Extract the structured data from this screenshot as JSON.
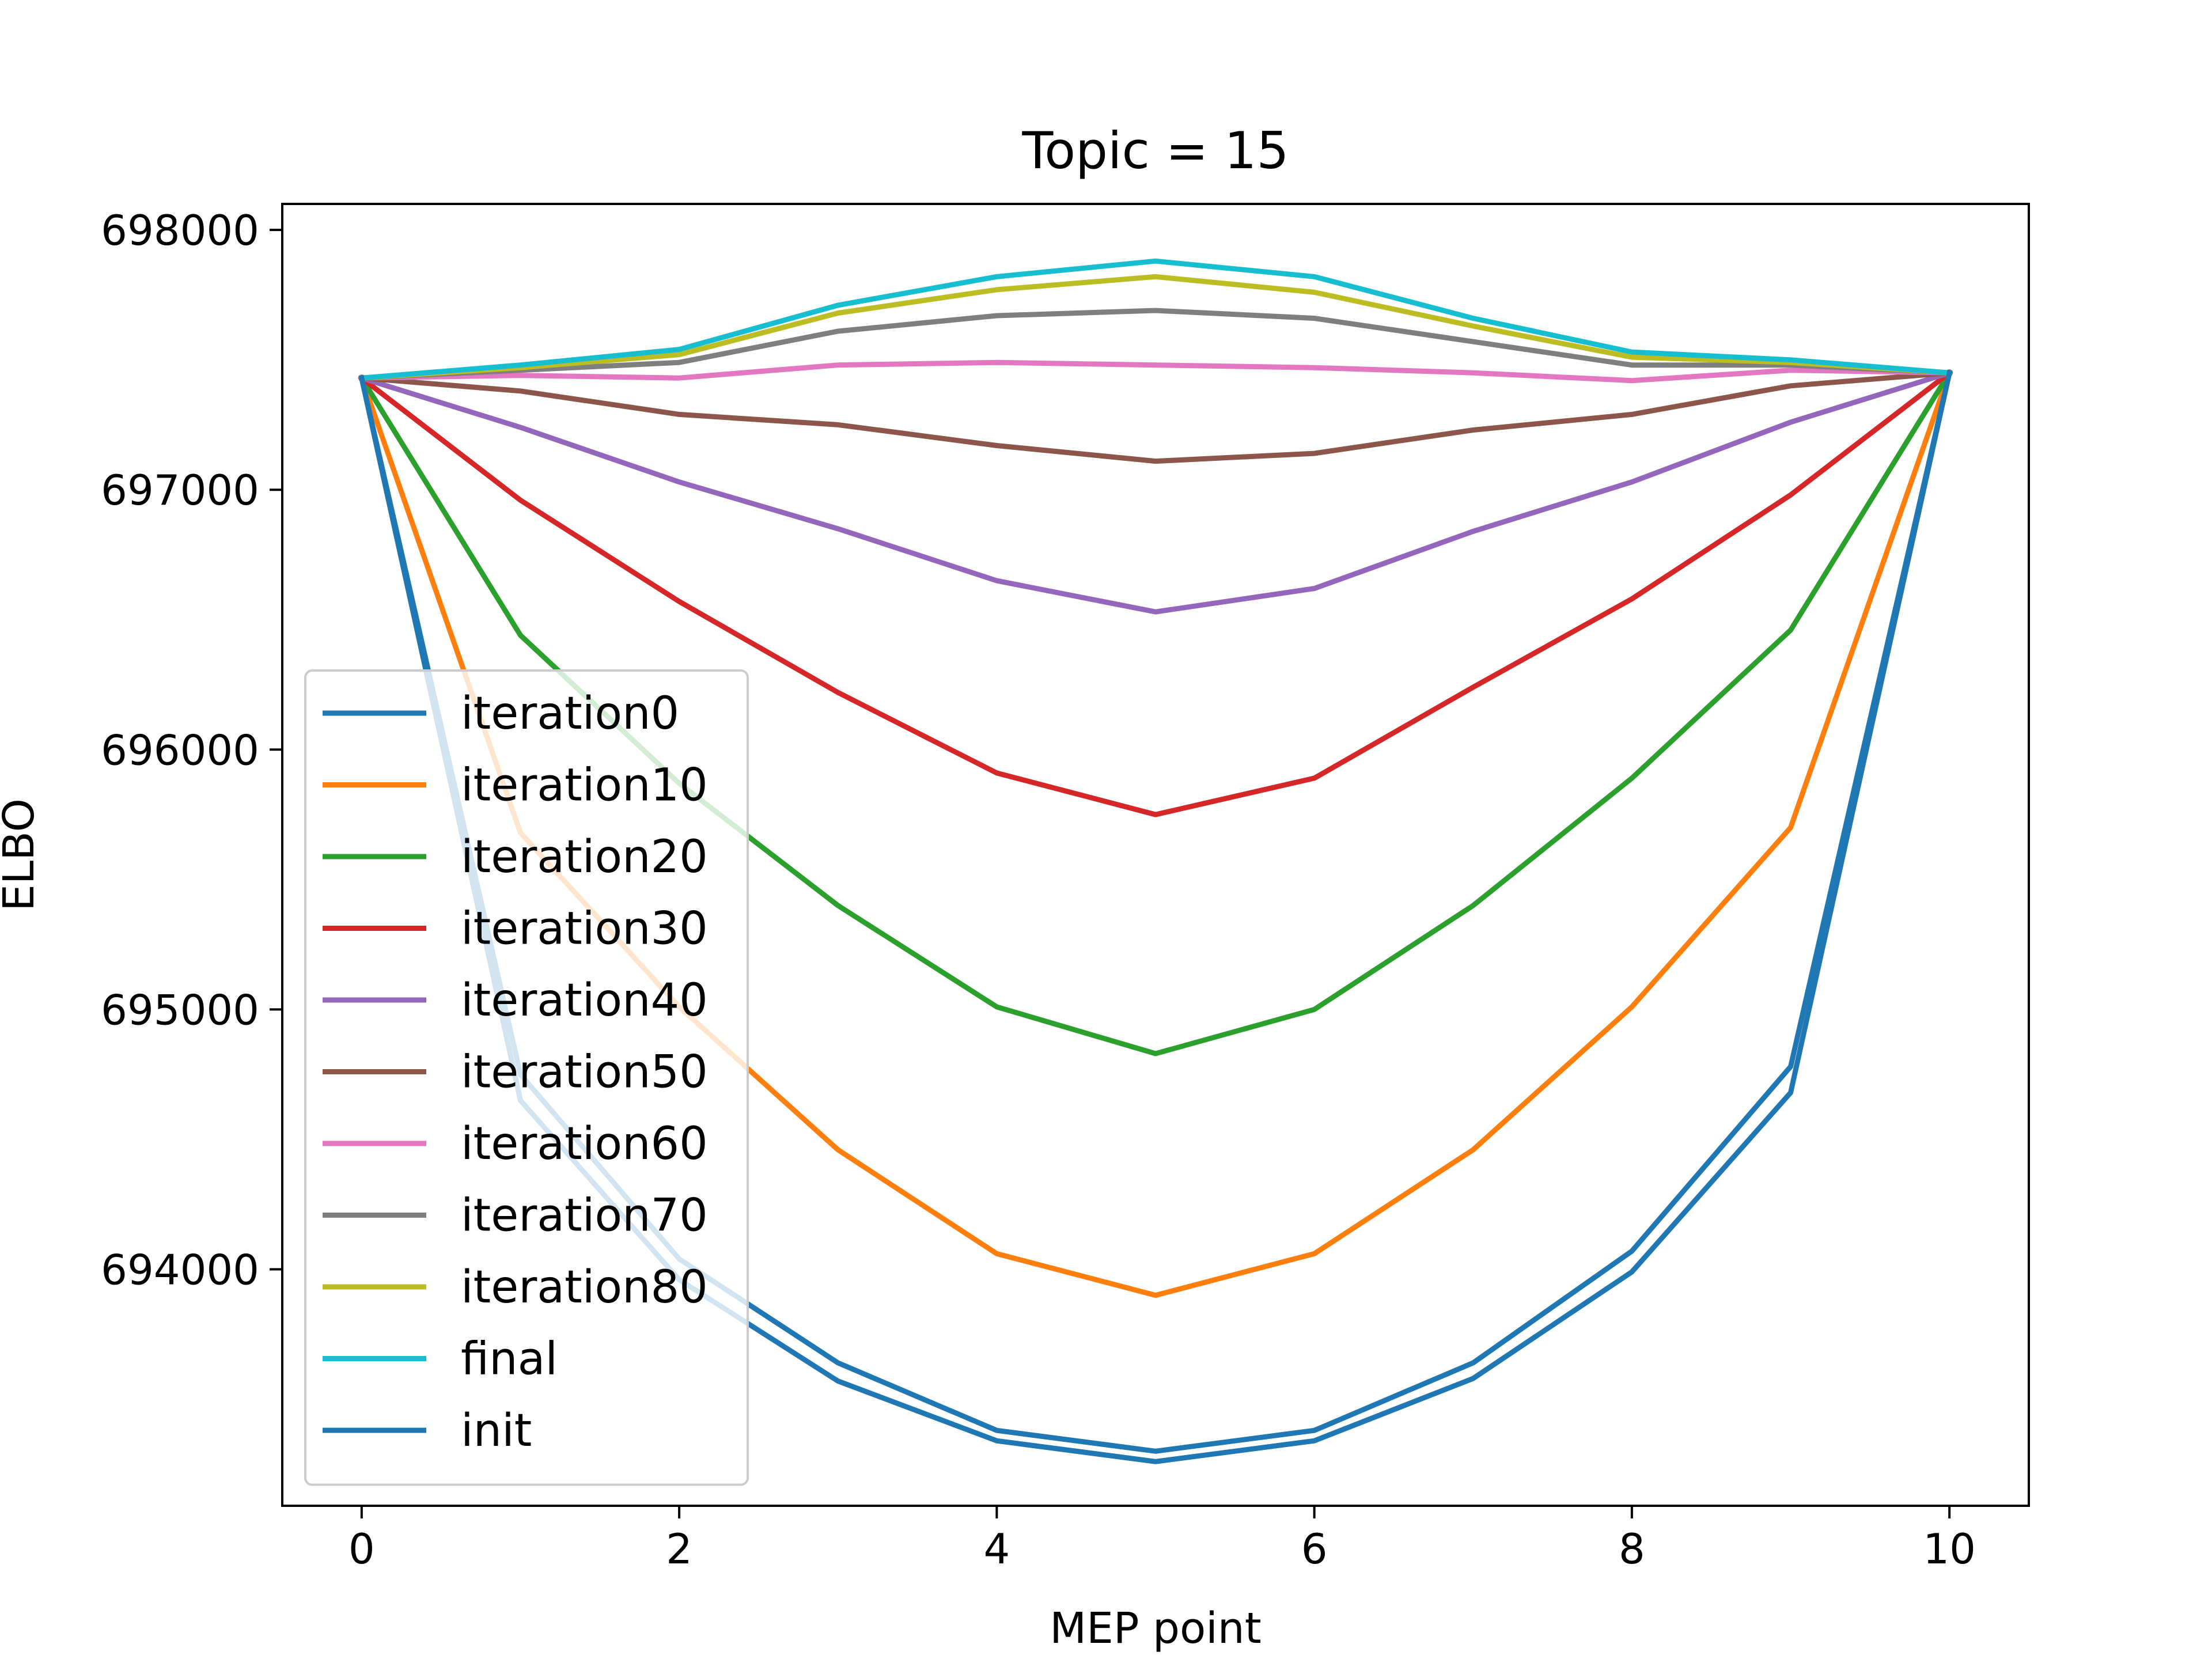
{
  "chart_data": {
    "type": "line",
    "title": "Topic = 15",
    "xlabel": "MEP point",
    "ylabel": "ELBO",
    "xlim": [
      -0.5,
      10.5
    ],
    "ylim": [
      693090,
      698100
    ],
    "xticks": [
      0,
      2,
      4,
      6,
      8,
      10
    ],
    "xtick_labels": [
      "0",
      "2",
      "4",
      "6",
      "8",
      "10"
    ],
    "yticks": [
      694000,
      695000,
      696000,
      697000,
      698000
    ],
    "ytick_labels": [
      "694000",
      "695000",
      "696000",
      "697000",
      "698000"
    ],
    "grid": false,
    "legend_position": "lower-left",
    "x": [
      0,
      1,
      2,
      3,
      4,
      5,
      6,
      7,
      8,
      9,
      10
    ],
    "series": [
      {
        "name": "iteration0",
        "color": "#1f77b4",
        "values": [
          697430,
          694650,
          693960,
          693570,
          693340,
          693260,
          693340,
          693580,
          693990,
          694680,
          697450
        ]
      },
      {
        "name": "iteration10",
        "color": "#ff7f0e",
        "values": [
          697430,
          695680,
          695010,
          694460,
          694060,
          693900,
          694060,
          694460,
          695010,
          695700,
          697450
        ]
      },
      {
        "name": "iteration20",
        "color": "#2ca02c",
        "values": [
          697430,
          696440,
          695870,
          695400,
          695010,
          694830,
          695000,
          695400,
          695890,
          696460,
          697450
        ]
      },
      {
        "name": "iteration30",
        "color": "#d62728",
        "values": [
          697430,
          696960,
          696570,
          696220,
          695910,
          695750,
          695890,
          696240,
          696580,
          696980,
          697450
        ]
      },
      {
        "name": "iteration40",
        "color": "#9467bd",
        "values": [
          697430,
          697240,
          697030,
          696850,
          696650,
          696530,
          696620,
          696840,
          697030,
          697260,
          697450
        ]
      },
      {
        "name": "iteration50",
        "color": "#8c564b",
        "values": [
          697430,
          697380,
          697290,
          697250,
          697170,
          697110,
          697140,
          697230,
          697290,
          697400,
          697450
        ]
      },
      {
        "name": "iteration60",
        "color": "#e377c2",
        "values": [
          697430,
          697440,
          697430,
          697480,
          697490,
          697480,
          697470,
          697450,
          697420,
          697460,
          697450
        ]
      },
      {
        "name": "iteration70",
        "color": "#7f7f7f",
        "values": [
          697430,
          697460,
          697490,
          697610,
          697670,
          697690,
          697660,
          697570,
          697480,
          697480,
          697450
        ]
      },
      {
        "name": "iteration80",
        "color": "#bcbd22",
        "values": [
          697430,
          697470,
          697520,
          697680,
          697770,
          697820,
          697760,
          697630,
          697510,
          697490,
          697450
        ]
      },
      {
        "name": "final",
        "color": "#17becf",
        "values": [
          697430,
          697480,
          697540,
          697710,
          697820,
          697880,
          697820,
          697660,
          697530,
          697500,
          697450
        ]
      },
      {
        "name": "init",
        "color": "#1f77b4",
        "values": [
          697430,
          694750,
          694040,
          693640,
          693380,
          693300,
          693380,
          693640,
          694070,
          694780,
          697450
        ]
      }
    ]
  }
}
